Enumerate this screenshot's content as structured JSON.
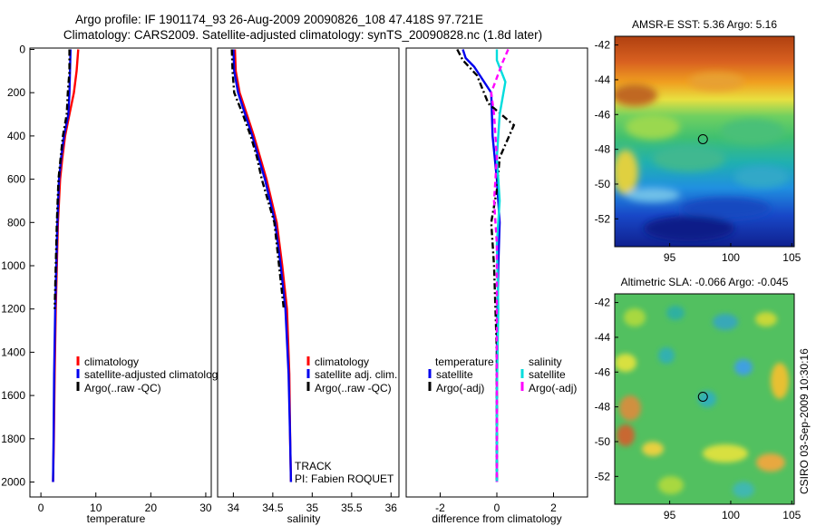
{
  "title": {
    "line1": "Argo profile: IF 1901174_93 26-Aug-2009 20090826_108 47.418S 97.721E",
    "line2": "Climatology: CARS2009. Satellite-adjusted climatology: synTS_20090828.nc (1.8d later)"
  },
  "credit": "CSIRO 03-Sep-2009 10:30:16",
  "chart_data": [
    {
      "type": "line",
      "id": "temperature",
      "xlabel": "temperature",
      "ylabel": "",
      "xlim": [
        -2,
        31
      ],
      "ylim": [
        2050,
        -10
      ],
      "xticks": [
        0,
        10,
        20,
        30
      ],
      "yticks": [
        0,
        200,
        400,
        600,
        800,
        1000,
        1200,
        1400,
        1600,
        1800,
        2000
      ],
      "colors": {
        "climatology": "#ff0000",
        "satellite": "#0000ee",
        "argo": "#000000"
      },
      "series": [
        {
          "name": "climatology",
          "style": "solid",
          "x": [
            6.8,
            6.5,
            6.0,
            5.2,
            4.4,
            3.9,
            3.5,
            3.1,
            2.9,
            2.7,
            2.5,
            2.35,
            2.2
          ],
          "y": [
            0,
            100,
            200,
            300,
            400,
            500,
            600,
            800,
            1000,
            1200,
            1500,
            1800,
            2000
          ]
        },
        {
          "name": "satellite-adjusted climatology",
          "style": "solid",
          "x": [
            5.4,
            5.3,
            5.2,
            5.0,
            4.2,
            3.7,
            3.3,
            3.0,
            2.8,
            2.6,
            2.4,
            2.3,
            2.2
          ],
          "y": [
            0,
            100,
            200,
            300,
            400,
            500,
            600,
            800,
            1000,
            1200,
            1500,
            1800,
            2000
          ]
        },
        {
          "name": "Argo(..raw -QC)",
          "style": "dashdot",
          "x": [
            5.2,
            5.2,
            4.9,
            4.7,
            4.0,
            3.6,
            3.2,
            2.9,
            2.7,
            2.5
          ],
          "y": [
            0,
            100,
            200,
            300,
            400,
            500,
            600,
            800,
            1000,
            1200
          ]
        }
      ],
      "legend": [
        "climatology",
        "satellite-adjusted climatology",
        "Argo(..raw -QC)"
      ]
    },
    {
      "type": "line",
      "id": "salinity",
      "xlabel": "salinity",
      "xlim": [
        33.8,
        36.1
      ],
      "ylim": [
        2050,
        -10
      ],
      "xticks": [
        34,
        34.5,
        35,
        35.5,
        36
      ],
      "xtick_labels": [
        "34",
        "34.5",
        "35",
        "35.5",
        "36"
      ],
      "series": [
        {
          "name": "climatology",
          "style": "solid",
          "x": [
            34.02,
            34.03,
            34.08,
            34.17,
            34.26,
            34.34,
            34.42,
            34.55,
            34.62,
            34.68,
            34.71,
            34.72,
            34.73
          ],
          "y": [
            0,
            100,
            200,
            300,
            400,
            500,
            600,
            800,
            1000,
            1200,
            1500,
            1800,
            2000
          ]
        },
        {
          "name": "satellite adj. clim.",
          "style": "solid",
          "x": [
            34.0,
            34.01,
            34.06,
            34.15,
            34.24,
            34.32,
            34.4,
            34.53,
            34.6,
            34.66,
            34.7,
            34.72,
            34.73
          ],
          "y": [
            0,
            100,
            200,
            300,
            400,
            500,
            600,
            800,
            1000,
            1200,
            1500,
            1800,
            2000
          ]
        },
        {
          "name": "Argo(..raw -QC)",
          "style": "dashdot",
          "x": [
            33.98,
            33.99,
            34.01,
            34.12,
            34.22,
            34.3,
            34.36,
            34.52,
            34.58,
            34.64
          ],
          "y": [
            0,
            100,
            200,
            300,
            400,
            500,
            600,
            800,
            1000,
            1200
          ]
        }
      ],
      "legend": [
        "climatology",
        "satellite adj. clim.",
        "Argo(..raw -QC)"
      ],
      "annotations": [
        "TRACK",
        "PI: Fabien ROQUET"
      ]
    },
    {
      "type": "line",
      "id": "difference",
      "xlabel": "difference from climatology",
      "xlim": [
        -3.2,
        3.2
      ],
      "ylim": [
        2050,
        -10
      ],
      "xticks": [
        -2,
        0,
        2
      ],
      "series": [
        {
          "name": "temperature satellite",
          "style": "solid",
          "color": "#0000ee",
          "x": [
            -1.2,
            -1.1,
            -0.8,
            -0.2,
            -0.15,
            0.0,
            0.1,
            0.05,
            0.0,
            0.0,
            0.0
          ],
          "y": [
            0,
            40,
            80,
            200,
            400,
            600,
            800,
            1000,
            1400,
            1800,
            2000
          ]
        },
        {
          "name": "temperature Argo(-adj)",
          "style": "dashdot",
          "color": "#000000",
          "x": [
            -1.4,
            -1.2,
            -0.7,
            -0.3,
            0.6,
            0.1,
            0.0,
            -0.2,
            -0.1,
            0.0,
            0.0
          ],
          "y": [
            0,
            50,
            120,
            250,
            350,
            500,
            650,
            800,
            1000,
            1400,
            2000
          ]
        },
        {
          "name": "salinity satellite",
          "style": "solid",
          "color": "#00dddd",
          "x": [
            0.0,
            0.0,
            0.3,
            0.1,
            0.0,
            0.1,
            0.0,
            0.05,
            0.0,
            0.0
          ],
          "y": [
            0,
            50,
            150,
            300,
            500,
            700,
            900,
            1200,
            1600,
            2000
          ]
        },
        {
          "name": "salinity Argo(-adj)",
          "style": "dashed",
          "color": "#ff00ff",
          "x": [
            0.4,
            0.2,
            -0.2,
            -0.1,
            0.0,
            -0.1,
            0.0,
            0.0,
            0.0
          ],
          "y": [
            0,
            60,
            200,
            300,
            500,
            700,
            900,
            1200,
            2000
          ]
        }
      ],
      "legend_headers": [
        "temperature",
        "salinity"
      ],
      "legend": [
        "satellite",
        "Argo(-adj)",
        "satellite",
        "Argo(-adj)"
      ]
    },
    {
      "type": "heatmap",
      "id": "sst_map",
      "title": "AMSR-E SST: 5.36 Argo: 5.16",
      "xlim": [
        90.5,
        105.2
      ],
      "ylim": [
        -53.6,
        -41.5
      ],
      "xticks": [
        95,
        100,
        105
      ],
      "yticks": [
        -42,
        -44,
        -46,
        -48,
        -50,
        -52
      ],
      "marker": {
        "lon": 97.721,
        "lat": -47.418
      }
    },
    {
      "type": "heatmap",
      "id": "sla_map",
      "title": "Altimetric SLA: -0.066 Argo: -0.045",
      "xlim": [
        90.5,
        105.2
      ],
      "ylim": [
        -53.6,
        -41.5
      ],
      "xticks": [
        95,
        100,
        105
      ],
      "yticks": [
        -42,
        -44,
        -46,
        -48,
        -50,
        -52
      ],
      "marker": {
        "lon": 97.721,
        "lat": -47.418
      }
    }
  ]
}
